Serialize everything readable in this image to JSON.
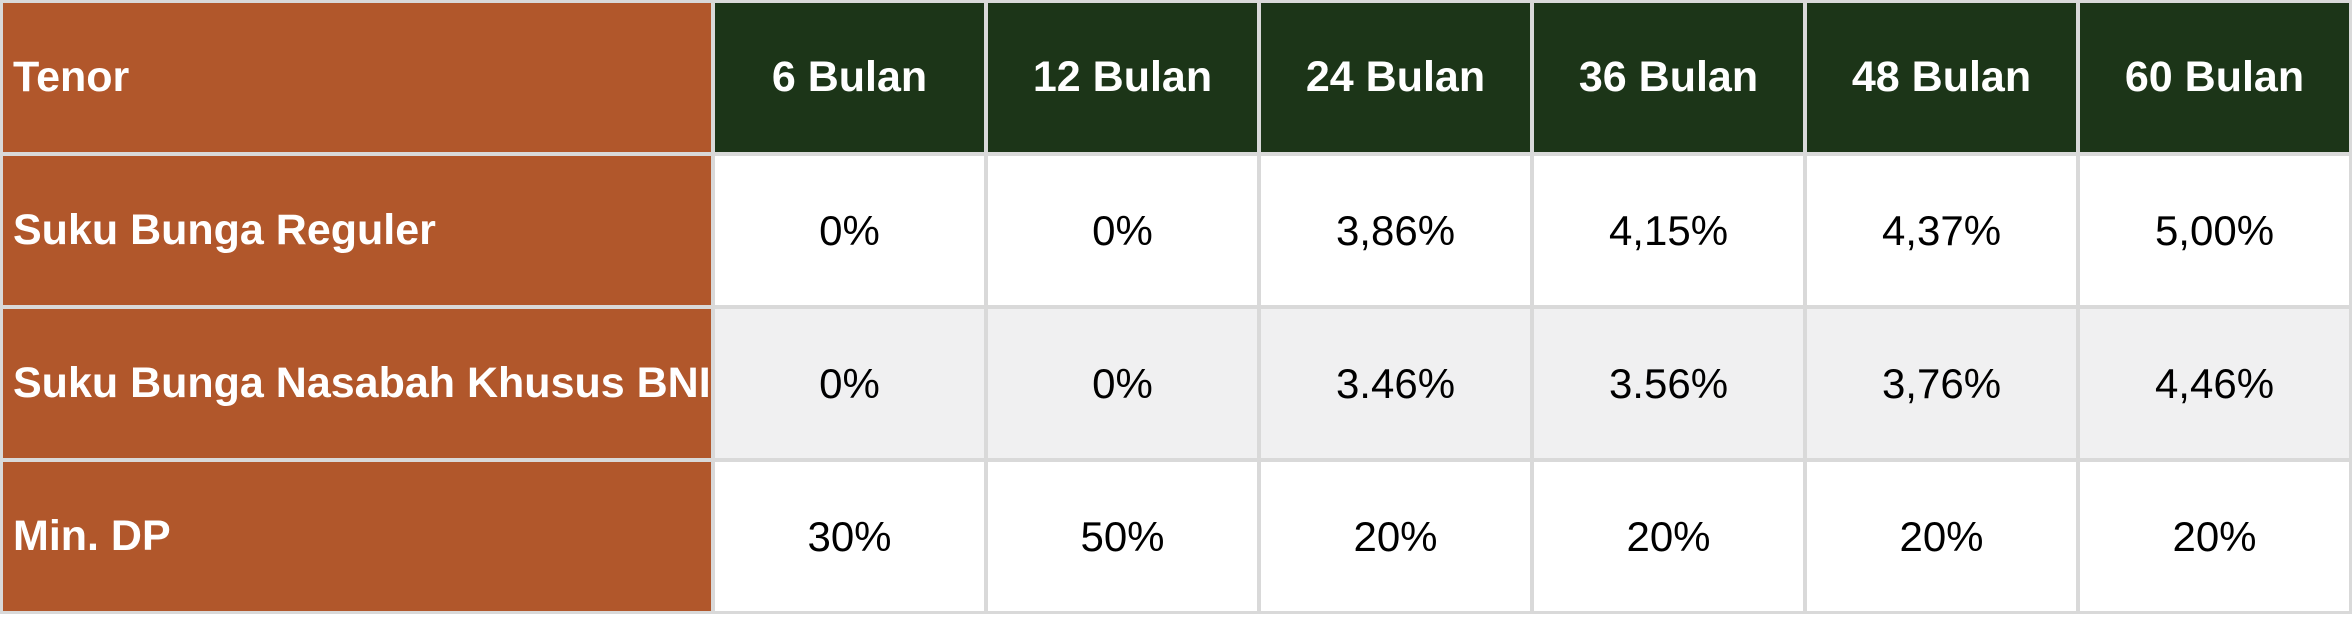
{
  "table": {
    "corner_label": "Tenor",
    "columns": [
      "6 Bulan",
      "12 Bulan",
      "24 Bulan",
      "36 Bulan",
      "48 Bulan",
      "60 Bulan"
    ],
    "rows": [
      {
        "label": "Suku Bunga Reguler",
        "values": [
          "0%",
          "0%",
          "3,86%",
          "4,15%",
          "4,37%",
          "5,00%"
        ]
      },
      {
        "label": "Suku Bunga Nasabah Khusus BNI",
        "values": [
          "0%",
          "0%",
          "3.46%",
          "3.56%",
          "3,76%",
          "4,46%"
        ]
      },
      {
        "label": "Min. DP",
        "values": [
          "30%",
          "50%",
          "20%",
          "20%",
          "20%",
          "20%"
        ]
      }
    ]
  },
  "colors": {
    "label_column_bg": "#B1572B",
    "header_row_bg": "#1C3518",
    "alt_row_bg": "#F0F0F1",
    "grid_line": "#D9D9D9",
    "header_text": "#FFFFFF",
    "value_text": "#000000"
  },
  "chart_data": {
    "type": "table",
    "columns": [
      "Tenor",
      "6 Bulan",
      "12 Bulan",
      "24 Bulan",
      "36 Bulan",
      "48 Bulan",
      "60 Bulan"
    ],
    "rows": [
      [
        "Suku Bunga Reguler",
        "0%",
        "0%",
        "3,86%",
        "4,15%",
        "4,37%",
        "5,00%"
      ],
      [
        "Suku Bunga Nasabah Khusus BNI",
        "0%",
        "0%",
        "3.46%",
        "3.56%",
        "3,76%",
        "4,46%"
      ],
      [
        "Min. DP",
        "30%",
        "50%",
        "20%",
        "20%",
        "20%",
        "20%"
      ]
    ]
  }
}
